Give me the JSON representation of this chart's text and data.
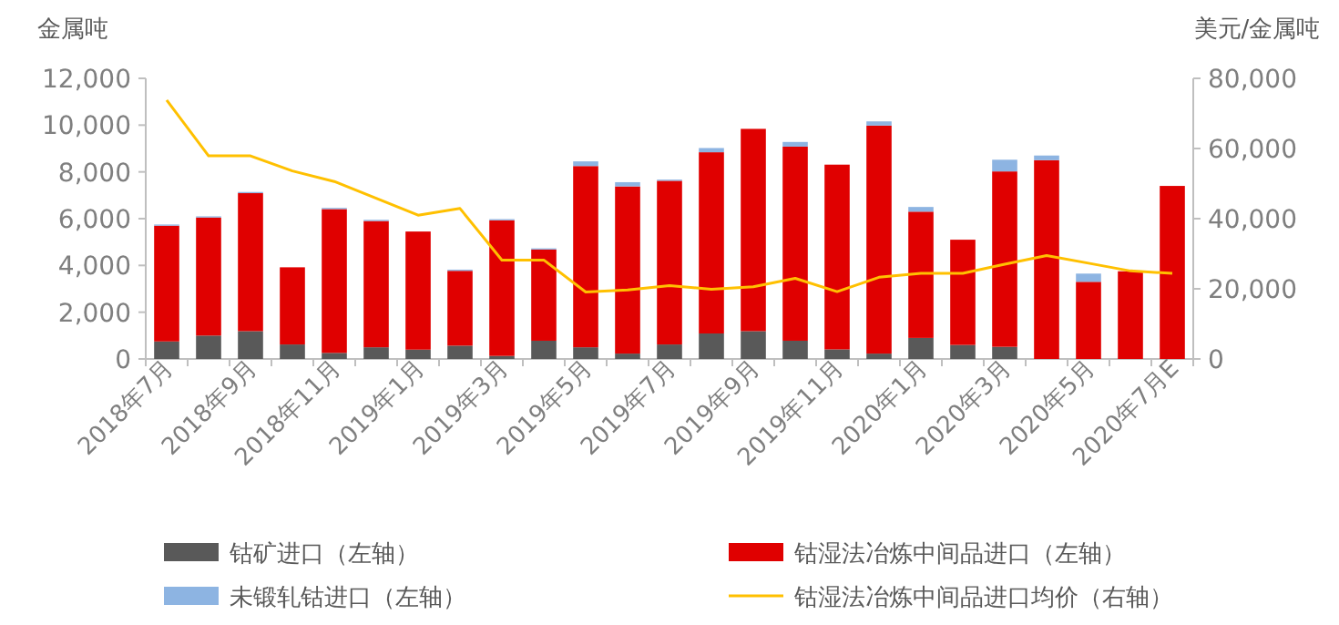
{
  "chart_data": {
    "type": "bar",
    "stacked": true,
    "ylabel": "金属吨",
    "y2label": "美元/金属吨",
    "ylim": [
      0,
      12000
    ],
    "yticks": [
      {
        "value": 0,
        "label": "0"
      },
      {
        "value": 2000,
        "label": "2,000"
      },
      {
        "value": 4000,
        "label": "4,000"
      },
      {
        "value": 6000,
        "label": "6,000"
      },
      {
        "value": 8000,
        "label": "8,000"
      },
      {
        "value": 10000,
        "label": "10,000"
      },
      {
        "value": 12000,
        "label": "12,000"
      }
    ],
    "y2lim": [
      0,
      80000
    ],
    "y2ticks": [
      {
        "value": 0,
        "label": "0"
      },
      {
        "value": 20000,
        "label": "20,000"
      },
      {
        "value": 40000,
        "label": "40,000"
      },
      {
        "value": 60000,
        "label": "60,000"
      },
      {
        "value": 80000,
        "label": "80,000"
      }
    ],
    "grid": false,
    "legend": "bottom",
    "categories": [
      "2018年7月",
      null,
      "2018年9月",
      null,
      "2018年11月",
      null,
      "2019年1月",
      null,
      "2019年3月",
      null,
      "2019年5月",
      null,
      "2019年7月",
      null,
      "2019年9月",
      null,
      "2019年11月",
      null,
      "2020年1月",
      null,
      "2020年3月",
      null,
      "2020年5月",
      null,
      "2020年7月E"
    ],
    "series": [
      {
        "name": "钴矿进口（左轴）",
        "color": "#595959",
        "values": [
          750,
          1000,
          1190,
          620,
          260,
          500,
          400,
          570,
          130,
          780,
          500,
          230,
          620,
          1090,
          1190,
          780,
          410,
          230,
          900,
          600,
          520,
          0,
          0,
          0,
          0
        ]
      },
      {
        "name": "钴湿法冶炼中间品进口（左轴）",
        "color": "#e00000",
        "values": [
          4950,
          5050,
          5900,
          3300,
          6150,
          5400,
          5050,
          3200,
          5800,
          3900,
          7750,
          7150,
          7000,
          7750,
          8650,
          8300,
          7900,
          9750,
          5400,
          4500,
          7500,
          8500,
          3300,
          3750,
          7400
        ]
      },
      {
        "name": "未锻轧钴进口（左轴）",
        "color": "#8db4e2",
        "values": [
          50,
          50,
          50,
          null,
          50,
          50,
          null,
          50,
          50,
          50,
          200,
          180,
          50,
          180,
          null,
          200,
          null,
          180,
          200,
          null,
          500,
          200,
          350,
          null,
          null
        ]
      },
      {
        "name": "钴湿法冶炼中间品进口均价（右轴）",
        "color": "#ffc000",
        "type": "line",
        "axis": "y2",
        "values": [
          73800,
          57900,
          57900,
          53600,
          50600,
          45800,
          41000,
          42900,
          28200,
          28200,
          19100,
          19700,
          20900,
          19900,
          20600,
          23000,
          19200,
          23300,
          24400,
          24400,
          27000,
          29500,
          27300,
          25100,
          24400
        ]
      }
    ]
  }
}
